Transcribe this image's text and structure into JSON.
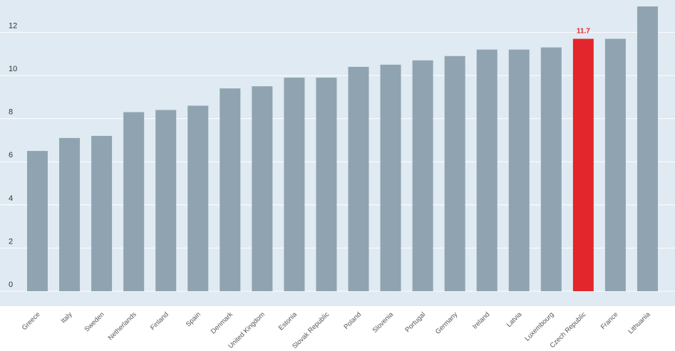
{
  "chart_data": {
    "type": "bar",
    "title": "",
    "xlabel": "",
    "ylabel": "",
    "categories": [
      "Greece",
      "Italy",
      "Sweden",
      "Netherlands",
      "Finland",
      "Spain",
      "Denmark",
      "United Kingdom",
      "Estonia",
      "Slovak Republic",
      "Poland",
      "Slovenia",
      "Portugal",
      "Germany",
      "Ireland",
      "Latvia",
      "Luxembourg",
      "Czech Republic",
      "France",
      "Lithuania"
    ],
    "values": [
      6.5,
      7.1,
      7.2,
      8.3,
      8.4,
      8.6,
      9.4,
      9.5,
      9.9,
      9.9,
      10.4,
      10.5,
      10.7,
      10.9,
      11.2,
      11.2,
      11.3,
      11.7,
      11.7,
      13.2
    ],
    "yticks": [
      0,
      2,
      4,
      6,
      8,
      10,
      12
    ],
    "ylim": [
      0,
      13.4
    ],
    "grid": true,
    "highlight": {
      "category": "Czech Republic",
      "label": "11.7"
    },
    "colors": {
      "bar": "#8fa4b0",
      "highlight": "#e3262b",
      "plot_background": "#dfeaf2",
      "gridline": "#ffffff"
    }
  }
}
